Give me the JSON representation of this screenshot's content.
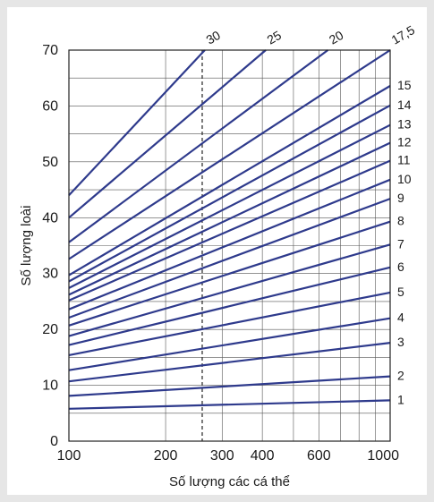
{
  "chart_data": {
    "type": "line",
    "xscale": "log",
    "xlabel": "Số lượng các cá thể",
    "ylabel": "Số lượng loài",
    "xlim": [
      100,
      1000
    ],
    "ylim": [
      0,
      70
    ],
    "xticks": [
      100,
      200,
      300,
      400,
      600,
      1000
    ],
    "xtick_labels": [
      "100",
      "200",
      "300",
      "400",
      "600",
      "1000"
    ],
    "yticks": [
      0,
      10,
      20,
      30,
      40,
      50,
      60,
      70
    ],
    "grid": true,
    "vline": {
      "x": 260,
      "style": "dashed"
    },
    "line_color": "#2e3a8c",
    "series": [
      {
        "name": "1",
        "values": [
          [
            100,
            5.8
          ],
          [
            1000,
            7.3
          ]
        ]
      },
      {
        "name": "2",
        "values": [
          [
            100,
            8.1
          ],
          [
            1000,
            11.6
          ]
        ]
      },
      {
        "name": "3",
        "values": [
          [
            100,
            10.7
          ],
          [
            1000,
            17.6
          ]
        ]
      },
      {
        "name": "4",
        "values": [
          [
            100,
            12.7
          ],
          [
            1000,
            22.0
          ]
        ]
      },
      {
        "name": "5",
        "values": [
          [
            100,
            15.4
          ],
          [
            1000,
            26.6
          ]
        ]
      },
      {
        "name": "6",
        "values": [
          [
            100,
            17.2
          ],
          [
            1000,
            31.1
          ]
        ]
      },
      {
        "name": "7",
        "values": [
          [
            100,
            18.8
          ],
          [
            1000,
            35.2
          ]
        ]
      },
      {
        "name": "8",
        "values": [
          [
            100,
            20.7
          ],
          [
            1000,
            39.3
          ]
        ]
      },
      {
        "name": "9",
        "values": [
          [
            100,
            22.1
          ],
          [
            1000,
            43.4
          ]
        ]
      },
      {
        "name": "10",
        "values": [
          [
            100,
            23.6
          ],
          [
            1000,
            46.8
          ]
        ]
      },
      {
        "name": "11",
        "values": [
          [
            100,
            25.2
          ],
          [
            1000,
            50.2
          ]
        ]
      },
      {
        "name": "12",
        "values": [
          [
            100,
            26.2
          ],
          [
            1000,
            53.4
          ]
        ]
      },
      {
        "name": "13",
        "values": [
          [
            100,
            27.4
          ],
          [
            1000,
            56.6
          ]
        ]
      },
      {
        "name": "14",
        "values": [
          [
            100,
            28.6
          ],
          [
            1000,
            60.1
          ]
        ]
      },
      {
        "name": "15",
        "values": [
          [
            100,
            29.7
          ],
          [
            1000,
            63.6
          ]
        ]
      },
      {
        "name": "17,5",
        "values": [
          [
            100,
            32.6
          ],
          [
            1000,
            70.0
          ]
        ]
      },
      {
        "name": "20",
        "values": [
          [
            100,
            35.6
          ],
          [
            640,
            70.0
          ]
        ]
      },
      {
        "name": "25",
        "values": [
          [
            100,
            40.0
          ],
          [
            410,
            70.0
          ]
        ]
      },
      {
        "name": "30",
        "values": [
          [
            100,
            44.0
          ],
          [
            265,
            70.0
          ]
        ]
      }
    ]
  }
}
